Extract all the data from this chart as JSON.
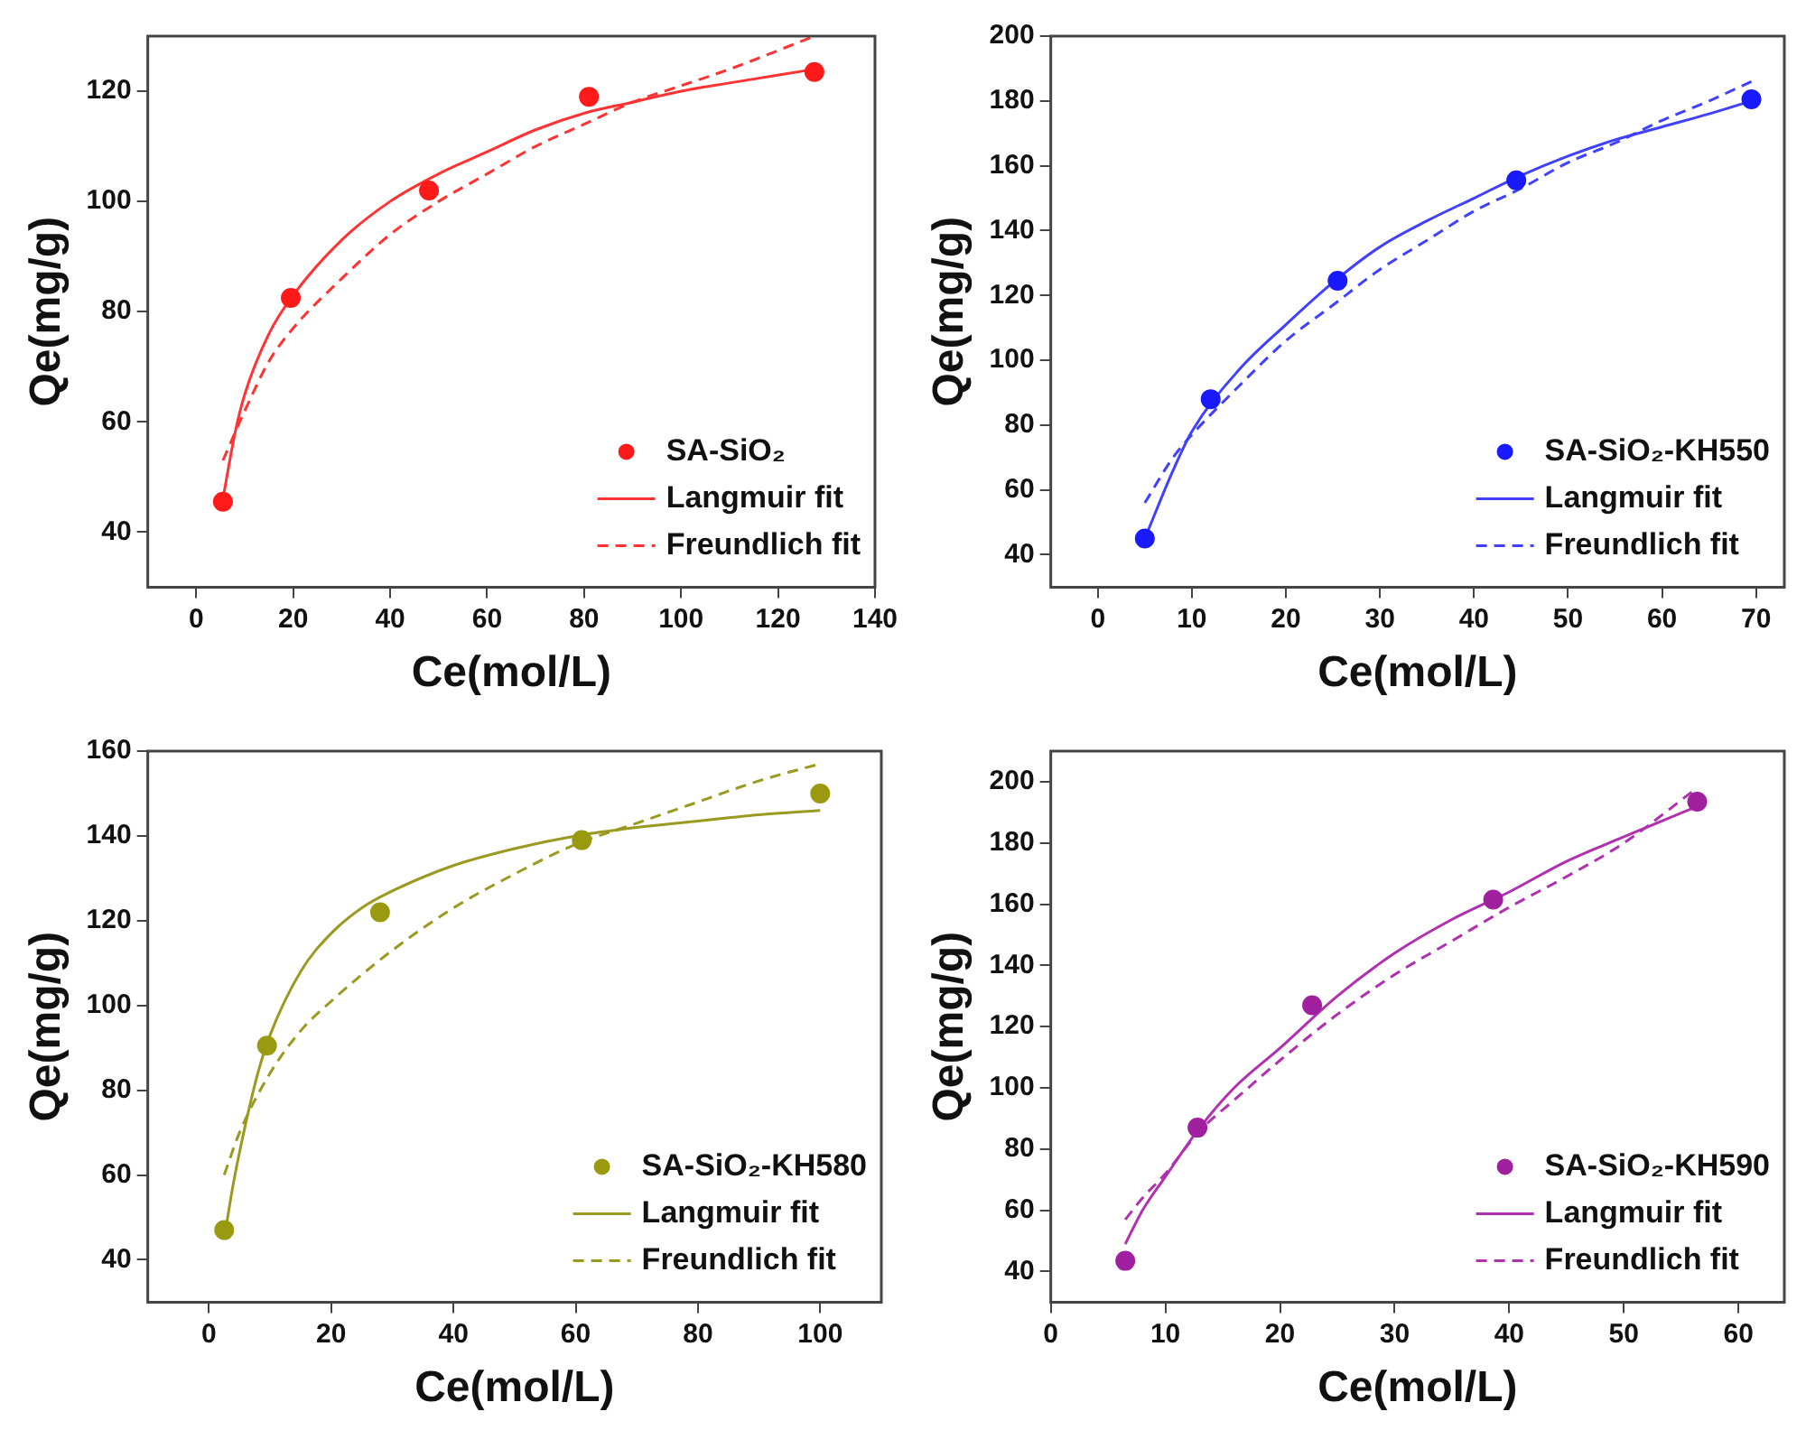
{
  "chart_data": [
    {
      "type": "scatter",
      "xlabel": "Ce(mol/L)",
      "ylabel": "Qe(mg/g)",
      "xlim": [
        -10,
        140
      ],
      "xticks": [
        0,
        20,
        40,
        60,
        80,
        100,
        120,
        140
      ],
      "ylim": [
        30,
        130
      ],
      "yticks": [
        40,
        60,
        80,
        100,
        120
      ],
      "legend": "bottom right",
      "series": [
        {
          "name": "SA-SiO₂",
          "marker": "circle",
          "color": "#ff1a1a",
          "x": [
            5.5,
            19.5,
            48,
            81,
            127.5
          ],
          "values": [
            45.5,
            82.5,
            102,
            119,
            123.5
          ]
        },
        {
          "name": "Langmuir fit",
          "type": "line",
          "line_style": "solid",
          "color": "#ff3333",
          "x": [
            5.5,
            8,
            10,
            15,
            20,
            30,
            40,
            50,
            60,
            70,
            80,
            90,
            100,
            110,
            127.5
          ],
          "values": [
            46,
            58,
            65,
            76,
            83,
            93,
            100,
            105,
            109,
            113,
            116,
            118,
            120,
            121.5,
            124
          ]
        },
        {
          "name": "Freundlich fit",
          "type": "line",
          "line_style": "dashed",
          "color": "#ff3333",
          "x": [
            5.5,
            10,
            15,
            20,
            30,
            40,
            50,
            60,
            70,
            80,
            90,
            100,
            110,
            127.5
          ],
          "values": [
            53,
            62,
            71,
            77,
            86,
            94,
            100,
            105,
            110,
            114,
            118,
            121,
            124,
            130
          ]
        }
      ]
    },
    {
      "type": "scatter",
      "xlabel": "Ce(mol/L)",
      "ylabel": "Qe(mg/g)",
      "xlim": [
        -5,
        73
      ],
      "xticks": [
        0,
        10,
        20,
        30,
        40,
        50,
        60,
        70
      ],
      "ylim": [
        30,
        200
      ],
      "yticks": [
        40,
        60,
        80,
        100,
        120,
        140,
        160,
        180,
        200
      ],
      "legend": "bottom right",
      "series": [
        {
          "name": "SA-SiO₂-KH550",
          "marker": "circle",
          "color": "#1a1aff",
          "x": [
            5,
            12,
            25.5,
            44.5,
            69.5
          ],
          "values": [
            45,
            88,
            124.5,
            155.5,
            180.5
          ]
        },
        {
          "name": "Langmuir fit",
          "type": "line",
          "line_style": "solid",
          "color": "#4040ff",
          "x": [
            5,
            8,
            10,
            15,
            20,
            25,
            30,
            35,
            40,
            45,
            50,
            55,
            60,
            65,
            69.5
          ],
          "values": [
            45,
            66,
            78,
            97,
            111,
            124,
            135,
            143,
            150,
            157,
            163,
            168,
            172,
            176,
            180
          ]
        },
        {
          "name": "Freundlich fit",
          "type": "line",
          "line_style": "dashed",
          "color": "#4040ff",
          "x": [
            5,
            8,
            10,
            15,
            20,
            25,
            30,
            35,
            40,
            45,
            50,
            55,
            60,
            65,
            69.5
          ],
          "values": [
            56,
            70,
            77,
            92,
            106,
            117,
            128,
            137,
            146,
            153,
            161,
            167,
            174,
            180,
            186
          ]
        }
      ]
    },
    {
      "type": "scatter",
      "xlabel": "Ce(mol/L)",
      "ylabel": "Qe(mg/g)",
      "xlim": [
        -10,
        110
      ],
      "xticks": [
        0,
        20,
        40,
        60,
        80,
        100
      ],
      "ylim": [
        30,
        160
      ],
      "yticks": [
        40,
        60,
        80,
        100,
        120,
        140,
        160
      ],
      "legend": "bottom right",
      "series": [
        {
          "name": "SA-SiO₂-KH580",
          "marker": "circle",
          "color": "#9a9a10",
          "x": [
            2.5,
            9.5,
            28,
            61,
            100
          ],
          "values": [
            47,
            90.5,
            122,
            139,
            150
          ]
        },
        {
          "name": "Langmuir fit",
          "type": "line",
          "line_style": "solid",
          "color": "#9a9a20",
          "x": [
            2.5,
            4,
            6,
            8,
            10,
            15,
            20,
            25,
            30,
            40,
            50,
            60,
            70,
            80,
            90,
            100
          ],
          "values": [
            45,
            58,
            72,
            84,
            93,
            108,
            117,
            123,
            127,
            133,
            137,
            140,
            142,
            143.5,
            145,
            146
          ]
        },
        {
          "name": "Freundlich fit",
          "type": "line",
          "line_style": "dashed",
          "color": "#9a9a20",
          "x": [
            2.5,
            5,
            10,
            15,
            20,
            30,
            40,
            50,
            60,
            70,
            80,
            90,
            100
          ],
          "values": [
            60,
            70,
            84,
            94,
            101,
            113,
            123,
            131,
            138,
            143,
            148,
            153,
            157
          ]
        }
      ]
    },
    {
      "type": "scatter",
      "xlabel": "Ce(mol/L)",
      "ylabel": "Qe(mg/g)",
      "xlim": [
        0,
        64
      ],
      "xticks": [
        0,
        10,
        20,
        30,
        40,
        50,
        60
      ],
      "ylim": [
        30,
        210
      ],
      "yticks": [
        40,
        60,
        80,
        100,
        120,
        140,
        160,
        180,
        200
      ],
      "legend": "bottom right",
      "series": [
        {
          "name": "SA-SiO₂-KH590",
          "marker": "circle",
          "color": "#a020a0",
          "x": [
            6.5,
            12.8,
            22.8,
            38.6,
            56.4
          ],
          "values": [
            43.5,
            87,
            127,
            161.5,
            193.5
          ]
        },
        {
          "name": "Langmuir fit",
          "type": "line",
          "line_style": "solid",
          "color": "#b030b0",
          "x": [
            6.5,
            8,
            10,
            13,
            16,
            20,
            25,
            30,
            35,
            40,
            45,
            50,
            56.4
          ],
          "values": [
            49,
            60,
            71,
            87,
            100,
            113,
            130,
            144,
            155,
            164,
            174,
            182,
            192
          ]
        },
        {
          "name": "Freundlich fit",
          "type": "line",
          "line_style": "dashed",
          "color": "#b030b0",
          "x": [
            6.5,
            8,
            10,
            13,
            16,
            20,
            25,
            30,
            35,
            40,
            45,
            50,
            56.4
          ],
          "values": [
            57,
            64,
            72,
            86,
            96,
            109,
            124,
            137,
            148,
            159,
            169,
            180,
            198
          ]
        }
      ]
    }
  ]
}
